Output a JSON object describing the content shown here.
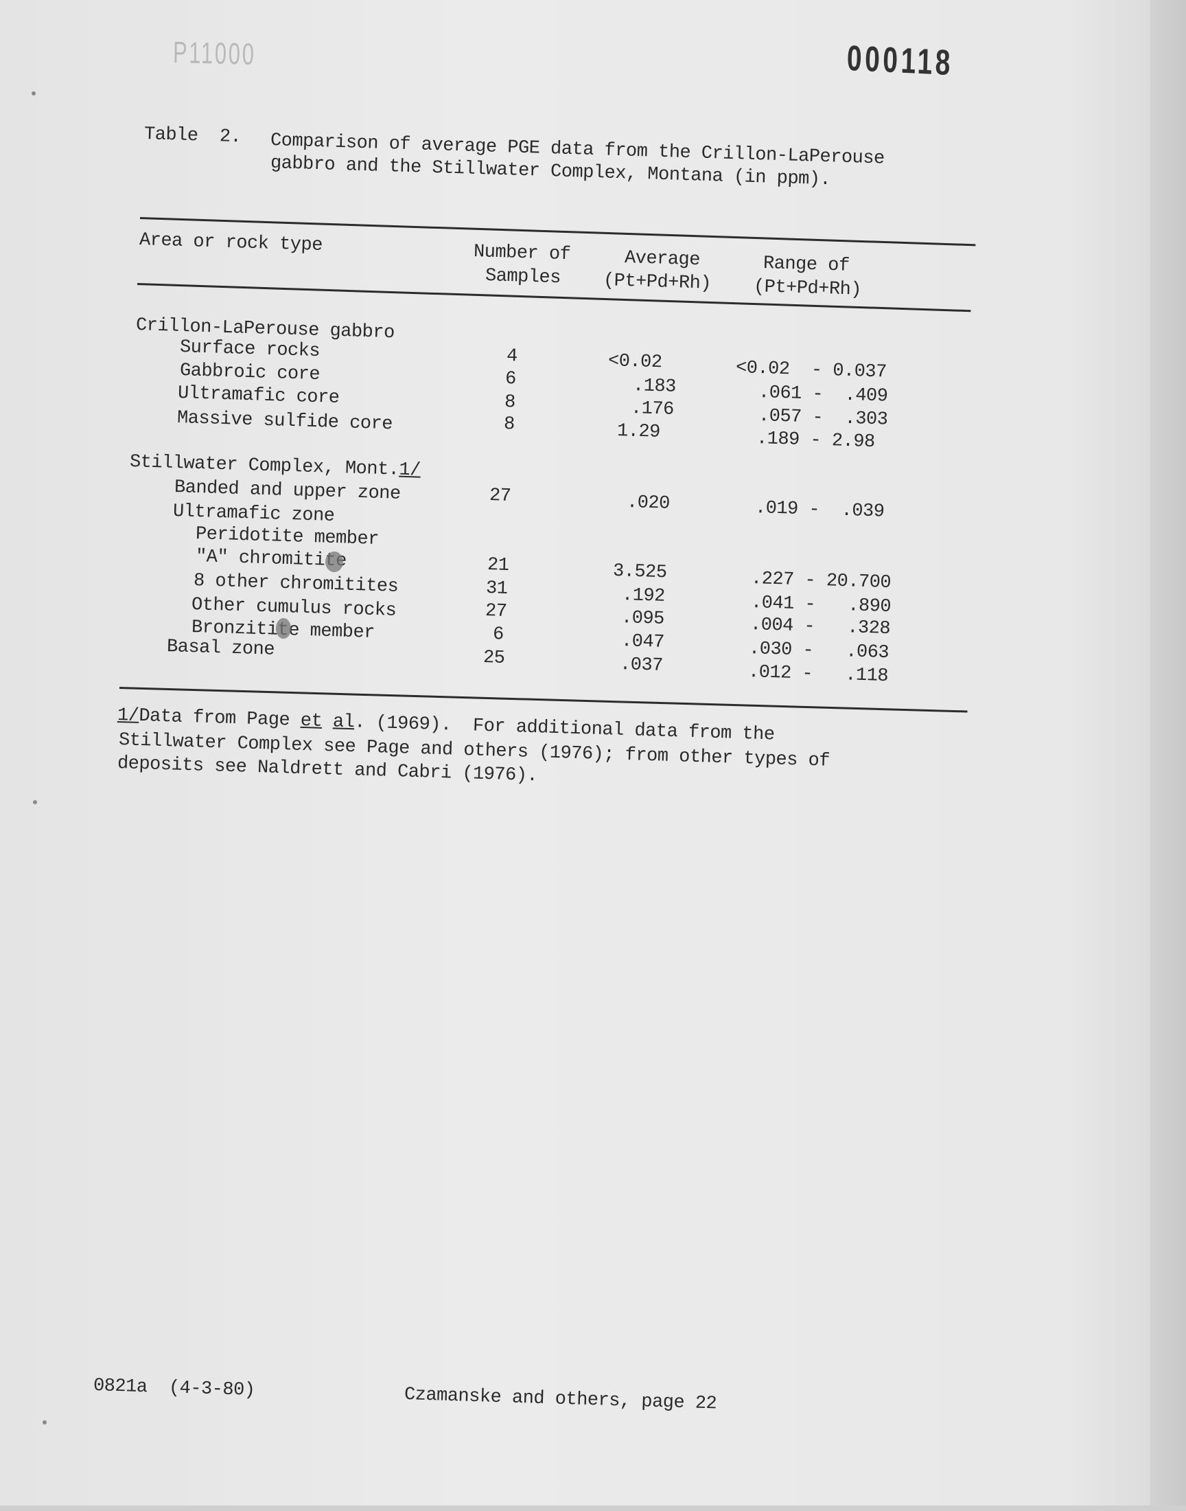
{
  "stamps": {
    "faded": "P11000",
    "page_number": "000118"
  },
  "title": {
    "label": "Table  2.",
    "line1": "Comparison of average PGE data from the Crillon-LaPerouse",
    "line2": "gabbro and the Stillwater Complex, Montana (in ppm)."
  },
  "headers": {
    "area": "Area or rock type",
    "samples_1": "Number of",
    "samples_2": "Samples",
    "average_1": "Average",
    "average_2": "(Pt+Pd+Rh)",
    "range_1": "Range of",
    "range_2": "(Pt+Pd+Rh)"
  },
  "groups": [
    {
      "name": "Crillon-LaPerouse gabbro",
      "rows": [
        {
          "label": "Surface rocks",
          "samples": "4",
          "average": "<0.02",
          "range": "<0.02  - 0.037"
        },
        {
          "label": "Gabbroic core",
          "samples": "6",
          "average": ".183",
          "range": ".061 -  .409"
        },
        {
          "label": "Ultramafic core",
          "samples": "8",
          "average": ".176",
          "range": ".057 -  .303"
        },
        {
          "label": "Massive sulfide core",
          "samples": "8",
          "average": "1.29",
          "range": ".189 - 2.98"
        }
      ]
    },
    {
      "name": "Stillwater Complex, Mont.",
      "footnote_ref": "1/",
      "rows": [
        {
          "label": "Banded and upper zone",
          "samples": "27",
          "average": ".020",
          "range": ".019 -  .039"
        },
        {
          "label": "Ultramafic zone"
        },
        {
          "label": "Peridotite member"
        },
        {
          "label": "\"A\" chromitite",
          "samples": "21",
          "average": "3.525",
          "range": ".227 - 20.700"
        },
        {
          "label": "8 other chromitites",
          "samples": "31",
          "average": ".192",
          "range": ".041 -   .890"
        },
        {
          "label": "Other cumulus rocks",
          "samples": "27",
          "average": ".095",
          "range": ".004 -   .328"
        },
        {
          "label": "Bronzitite member",
          "samples": "6",
          "average": ".047",
          "range": ".030 -   .063"
        },
        {
          "label": "Basal zone",
          "samples": "25",
          "average": ".037",
          "range": ".012 -   .118"
        }
      ]
    }
  ],
  "footnote": {
    "ref": "1/",
    "a": "Data from Page ",
    "et": "et",
    "al": "al",
    "b": ". (1969).  For additional data from the",
    "line2": "Stillwater Complex see Page and others (1976); from other types of",
    "line3": "deposits see Naldrett and Cabri (1976)."
  },
  "footer": {
    "code": "0821a  (4-3-80)",
    "page": "Czamanske and others, page 22"
  }
}
